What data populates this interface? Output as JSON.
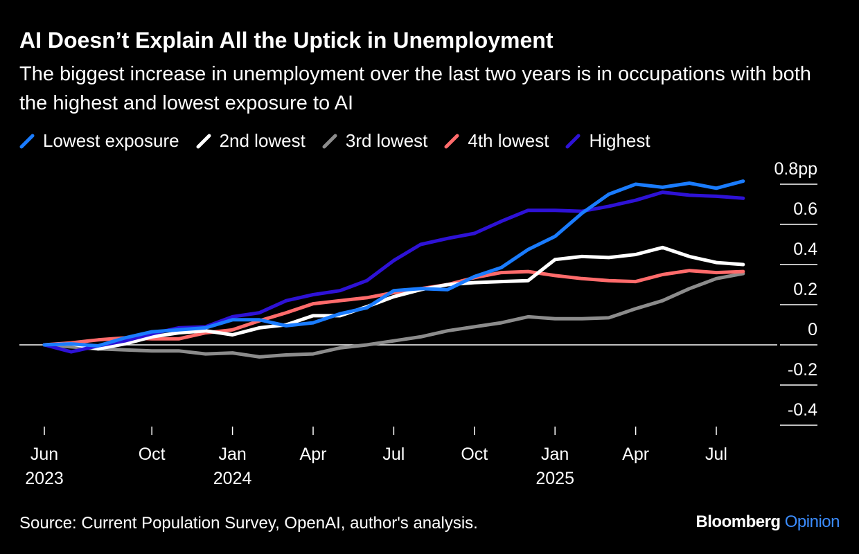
{
  "header": {
    "title": "AI Doesn’t Explain All the Uptick in Unemployment",
    "subtitle": "The biggest increase in unemployment over the last two years is in occupations with both the highest and lowest exposure to AI"
  },
  "footer": {
    "source": "Source: Current Population Survey, OpenAI, author's analysis.",
    "brand_main": "Bloomberg",
    "brand_sub": "Opinion"
  },
  "colors": {
    "background": "#000000",
    "lowest": "#1a7cff",
    "second": "#ffffff",
    "third": "#8c8c8c",
    "fourth": "#ff6b6b",
    "highest": "#2e12d6",
    "axis": "#ffffff"
  },
  "chart_data": {
    "type": "line",
    "title": "AI Doesn’t Explain All the Uptick in Unemployment",
    "ylabel": "",
    "xlabel": "",
    "ylim": [
      -0.4,
      0.8
    ],
    "y_ticks": [
      0.8,
      0.6,
      0.4,
      0.2,
      0,
      -0.2,
      -0.4
    ],
    "y_tick_labels": [
      "0.8pp",
      "0.6",
      "0.4",
      "0.2",
      "0",
      "-0.2",
      "-0.4"
    ],
    "y_axis_position": "right",
    "grid": false,
    "legend_position": "top-left",
    "x_ticks": [
      {
        "index": 0,
        "label": "Jun",
        "year": "2023"
      },
      {
        "index": 4,
        "label": "Oct",
        "year": ""
      },
      {
        "index": 7,
        "label": "Jan",
        "year": "2024"
      },
      {
        "index": 10,
        "label": "Apr",
        "year": ""
      },
      {
        "index": 13,
        "label": "Jul",
        "year": ""
      },
      {
        "index": 16,
        "label": "Oct",
        "year": ""
      },
      {
        "index": 19,
        "label": "Jan",
        "year": "2025"
      },
      {
        "index": 22,
        "label": "Apr",
        "year": ""
      },
      {
        "index": 25,
        "label": "Jul",
        "year": ""
      }
    ],
    "x": [
      "2023-06",
      "2023-07",
      "2023-08",
      "2023-09",
      "2023-10",
      "2023-11",
      "2023-12",
      "2024-01",
      "2024-02",
      "2024-03",
      "2024-04",
      "2024-05",
      "2024-06",
      "2024-07",
      "2024-08",
      "2024-09",
      "2024-10",
      "2024-11",
      "2024-12",
      "2025-01",
      "2025-02",
      "2025-03",
      "2025-04",
      "2025-05",
      "2025-06",
      "2025-07",
      "2025-08"
    ],
    "series": [
      {
        "name": "3rd lowest",
        "color": "#8c8c8c",
        "values": [
          0,
          -0.01,
          -0.02,
          -0.025,
          -0.03,
          -0.03,
          -0.045,
          -0.04,
          -0.06,
          -0.05,
          -0.045,
          -0.015,
          0,
          0.02,
          0.04,
          0.07,
          0.09,
          0.11,
          0.14,
          0.13,
          0.13,
          0.135,
          0.18,
          0.22,
          0.28,
          0.33,
          0.355
        ]
      },
      {
        "name": "4th lowest",
        "color": "#ff6b6b",
        "values": [
          0,
          0.01,
          0.025,
          0.035,
          0.03,
          0.03,
          0.06,
          0.075,
          0.12,
          0.16,
          0.205,
          0.22,
          0.235,
          0.26,
          0.28,
          0.3,
          0.335,
          0.36,
          0.365,
          0.345,
          0.33,
          0.32,
          0.315,
          0.35,
          0.37,
          0.36,
          0.365
        ]
      },
      {
        "name": "2nd lowest",
        "color": "#ffffff",
        "values": [
          0,
          0.005,
          -0.02,
          0.005,
          0.04,
          0.06,
          0.07,
          0.05,
          0.085,
          0.1,
          0.145,
          0.145,
          0.19,
          0.24,
          0.275,
          0.3,
          0.31,
          0.315,
          0.32,
          0.425,
          0.44,
          0.435,
          0.45,
          0.485,
          0.44,
          0.41,
          0.4
        ]
      },
      {
        "name": "Highest",
        "color": "#2e12d6",
        "values": [
          0,
          -0.035,
          -0.005,
          0.02,
          0.055,
          0.085,
          0.09,
          0.14,
          0.16,
          0.22,
          0.25,
          0.27,
          0.32,
          0.42,
          0.5,
          0.53,
          0.555,
          0.615,
          0.67,
          0.67,
          0.665,
          0.69,
          0.72,
          0.76,
          0.745,
          0.74,
          0.73
        ]
      },
      {
        "name": "Lowest exposure",
        "color": "#1a7cff",
        "values": [
          0,
          0.005,
          -0.005,
          0.035,
          0.065,
          0.075,
          0.085,
          0.125,
          0.125,
          0.095,
          0.11,
          0.155,
          0.185,
          0.27,
          0.28,
          0.275,
          0.34,
          0.385,
          0.475,
          0.54,
          0.655,
          0.75,
          0.8,
          0.785,
          0.805,
          0.78,
          0.815
        ]
      }
    ],
    "legend_order": [
      "Lowest exposure",
      "2nd lowest",
      "3rd lowest",
      "4th lowest",
      "Highest"
    ]
  }
}
